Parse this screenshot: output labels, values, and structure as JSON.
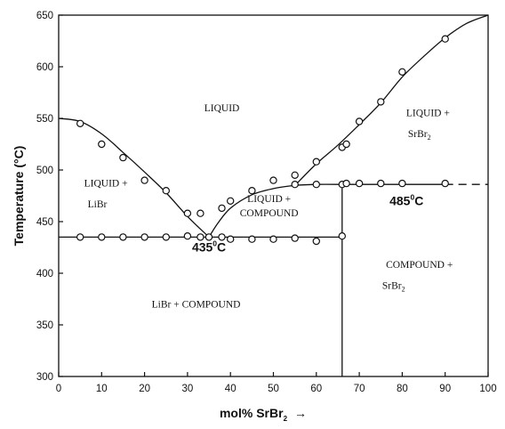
{
  "chart_data": {
    "type": "scatter",
    "xlabel": "mol% SrBr",
    "xlabel_subscript": "2",
    "xlabel_arrow": "→",
    "ylabel": "Temperature (°C)",
    "xlim": [
      0,
      100
    ],
    "ylim": [
      300,
      650
    ],
    "xticks": [
      0,
      10,
      20,
      30,
      40,
      50,
      60,
      70,
      80,
      90,
      100
    ],
    "yticks": [
      300,
      350,
      400,
      450,
      500,
      550,
      600,
      650
    ],
    "grid": false,
    "series": [
      {
        "marker": "open-circle",
        "points": [
          {
            "x": 5,
            "y": 545
          },
          {
            "x": 10,
            "y": 525
          },
          {
            "x": 15,
            "y": 512
          },
          {
            "x": 20,
            "y": 490
          },
          {
            "x": 25,
            "y": 480
          },
          {
            "x": 30,
            "y": 458
          },
          {
            "x": 33,
            "y": 458
          },
          {
            "x": 35,
            "y": 435
          },
          {
            "x": 38,
            "y": 463
          },
          {
            "x": 40,
            "y": 470
          },
          {
            "x": 45,
            "y": 480
          },
          {
            "x": 50,
            "y": 490
          },
          {
            "x": 55,
            "y": 495
          },
          {
            "x": 60,
            "y": 508
          },
          {
            "x": 66,
            "y": 522
          },
          {
            "x": 67,
            "y": 525
          },
          {
            "x": 70,
            "y": 547
          },
          {
            "x": 75,
            "y": 566
          },
          {
            "x": 80,
            "y": 595
          },
          {
            "x": 90,
            "y": 627
          },
          {
            "x": 5,
            "y": 435
          },
          {
            "x": 10,
            "y": 435
          },
          {
            "x": 15,
            "y": 435
          },
          {
            "x": 20,
            "y": 435
          },
          {
            "x": 25,
            "y": 435
          },
          {
            "x": 30,
            "y": 436
          },
          {
            "x": 33,
            "y": 435
          },
          {
            "x": 38,
            "y": 435
          },
          {
            "x": 40,
            "y": 433
          },
          {
            "x": 45,
            "y": 433
          },
          {
            "x": 50,
            "y": 433
          },
          {
            "x": 55,
            "y": 434
          },
          {
            "x": 60,
            "y": 431
          },
          {
            "x": 66,
            "y": 436
          },
          {
            "x": 55,
            "y": 486
          },
          {
            "x": 60,
            "y": 486
          },
          {
            "x": 66,
            "y": 486
          },
          {
            "x": 67,
            "y": 487
          },
          {
            "x": 70,
            "y": 487
          },
          {
            "x": 75,
            "y": 487
          },
          {
            "x": 80,
            "y": 487
          },
          {
            "x": 90,
            "y": 487
          }
        ]
      }
    ],
    "curves": [
      {
        "points": [
          [
            0,
            550
          ],
          [
            5,
            547
          ],
          [
            10,
            535
          ],
          [
            15,
            517
          ],
          [
            20,
            498
          ],
          [
            25,
            478
          ],
          [
            30,
            455
          ],
          [
            35,
            435
          ]
        ]
      },
      {
        "points": [
          [
            35,
            435
          ],
          [
            37,
            448
          ],
          [
            40,
            463
          ],
          [
            45,
            476
          ],
          [
            50,
            482
          ],
          [
            55,
            485
          ],
          [
            60,
            486
          ],
          [
            66,
            486
          ]
        ]
      },
      {
        "points": [
          [
            55,
            485
          ],
          [
            60,
            506
          ],
          [
            65,
            524
          ],
          [
            70,
            544
          ],
          [
            75,
            565
          ],
          [
            80,
            590
          ],
          [
            85,
            610
          ],
          [
            90,
            628
          ],
          [
            95,
            642
          ],
          [
            100,
            650
          ]
        ]
      },
      {
        "points": [
          [
            0,
            435
          ],
          [
            66,
            435
          ]
        ]
      },
      {
        "points": [
          [
            66,
            486
          ],
          [
            90,
            486
          ]
        ]
      },
      {
        "points": [
          [
            66,
            300
          ],
          [
            66,
            486
          ]
        ]
      },
      {
        "points": [
          [
            90,
            486
          ],
          [
            100,
            486
          ]
        ],
        "dashed": true
      }
    ],
    "regions": [
      {
        "text": "LIQUID",
        "x": 38,
        "y": 557
      },
      {
        "text": "LIQUID +",
        "x": 86,
        "y": 552
      },
      {
        "text": "SrBr",
        "sub": "2",
        "x": 84,
        "y": 532
      },
      {
        "text": "LIQUID +",
        "x": 11,
        "y": 484
      },
      {
        "text": "LiBr",
        "x": 9,
        "y": 464
      },
      {
        "text": "LIQUID +",
        "x": 49,
        "y": 469
      },
      {
        "text": "COMPOUND",
        "x": 49,
        "y": 455
      },
      {
        "text": "LiBr + COMPOUND",
        "x": 32,
        "y": 367
      },
      {
        "text": "COMPOUND +",
        "x": 84,
        "y": 405
      },
      {
        "text": "SrBr",
        "sub": "2",
        "x": 78,
        "y": 385
      }
    ],
    "annotations": [
      {
        "number": "435",
        "sup": "0",
        "unit": "C",
        "x": 35,
        "y": 421
      },
      {
        "number": "485",
        "sup": "0",
        "unit": "C",
        "x": 81,
        "y": 466
      }
    ]
  }
}
